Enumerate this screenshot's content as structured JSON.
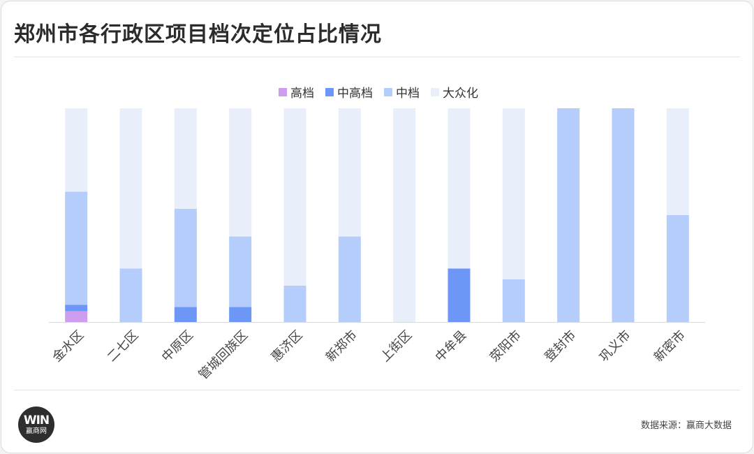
{
  "title": "郑州市各行政区项目档次定位占比情况",
  "source": "数据来源：赢商大数据",
  "logo": {
    "mark": "WIN",
    "name": "赢商网"
  },
  "chart_data": {
    "type": "bar",
    "stacked": true,
    "normalized": true,
    "title": "郑州市各行政区项目档次定位占比情况",
    "categories": [
      "金水区",
      "二七区",
      "中原区",
      "管城回族区",
      "惠济区",
      "新郑市",
      "上街区",
      "中牟县",
      "荥阳市",
      "登封市",
      "巩义市",
      "新密市"
    ],
    "series": [
      {
        "name": "高档",
        "color": "#cf9df0",
        "values": [
          5,
          0,
          0,
          0,
          0,
          0,
          0,
          0,
          0,
          0,
          0,
          0
        ]
      },
      {
        "name": "中高档",
        "color": "#6d97f7",
        "values": [
          3,
          0,
          7,
          7,
          0,
          0,
          0,
          25,
          0,
          0,
          0,
          0
        ]
      },
      {
        "name": "中档",
        "color": "#b5cdfb",
        "values": [
          53,
          25,
          46,
          33,
          17,
          40,
          0,
          0,
          20,
          100,
          100,
          50
        ]
      },
      {
        "name": "大众化",
        "color": "#e9effa",
        "values": [
          39,
          75,
          47,
          60,
          83,
          60,
          100,
          75,
          80,
          0,
          0,
          50
        ]
      }
    ],
    "ylim": [
      0,
      100
    ],
    "legend": "top-center",
    "grid": false
  }
}
